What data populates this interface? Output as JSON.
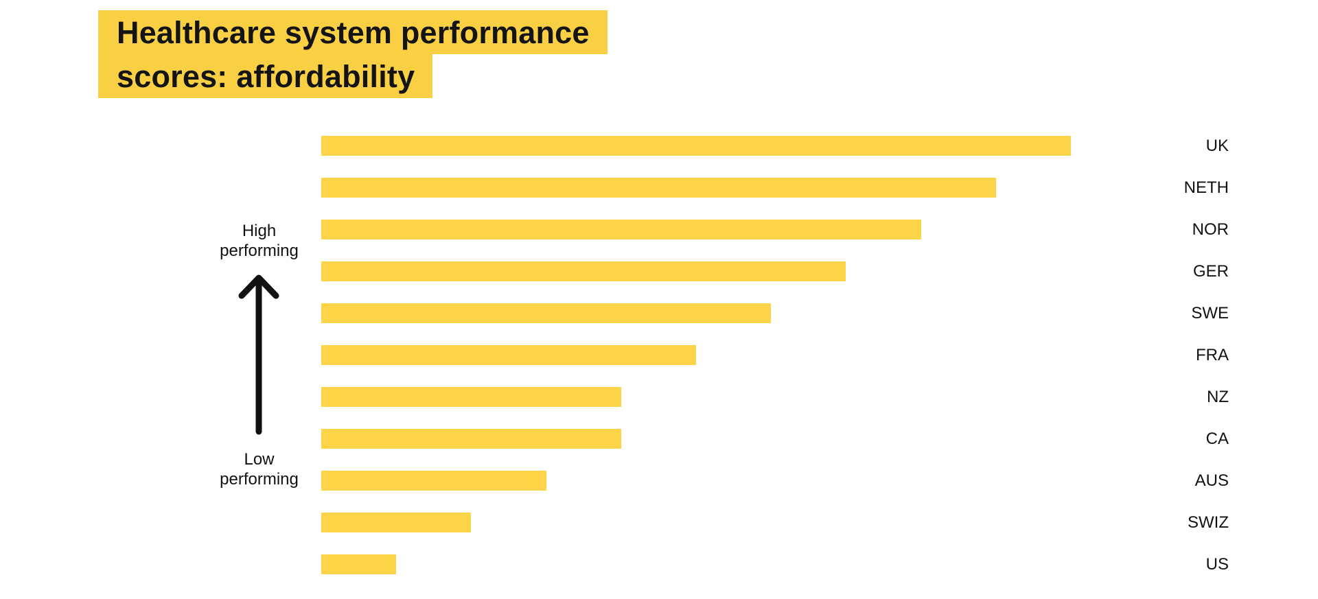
{
  "title": {
    "line1": "Healthcare system performance",
    "line2": "scores: affordability"
  },
  "side_labels": {
    "high_line1": "High",
    "high_line2": "performing",
    "low_line1": "Low",
    "low_line2": "performing"
  },
  "colors": {
    "highlight_yellow": "#F9D044",
    "bar_yellow": "#FCD447",
    "text_black": "#141414"
  },
  "chart_data": {
    "type": "bar",
    "orientation": "horizontal",
    "title": "Healthcare system performance scores: affordability",
    "categories": [
      "UK",
      "NETH",
      "NOR",
      "GER",
      "SWE",
      "FRA",
      "NZ",
      "CA",
      "AUS",
      "SWIZ",
      "US"
    ],
    "values": [
      10,
      9,
      8,
      7,
      6,
      5,
      4,
      4,
      3,
      2,
      1
    ],
    "xlim": [
      0,
      10
    ],
    "grid": false,
    "axes_shown": false,
    "bar_labels_position": "right",
    "annotations": [
      {
        "text": "High performing",
        "position": "left-top-with-up-arrow"
      },
      {
        "text": "Low performing",
        "position": "left-bottom"
      }
    ]
  }
}
